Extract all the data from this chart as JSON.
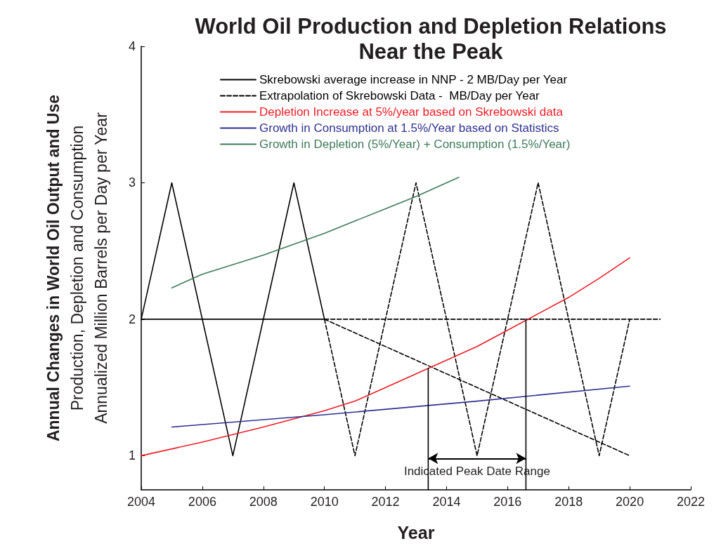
{
  "chart_data": {
    "type": "line",
    "title": "World Oil Production and Depletion Relations\nNear the Peak",
    "xlabel": "Year",
    "ylabel": "Annual Changes in World Oil Output and Use\nProduction, Depletion and Consumption\nAnnualized Million Barrels per Day per Year",
    "xlim": [
      2004,
      2022
    ],
    "xticks": [
      2004,
      2006,
      2008,
      2010,
      2012,
      2014,
      2016,
      2018,
      2020,
      2022
    ],
    "ylim": [
      0.75,
      4
    ],
    "yticks": [
      1,
      2,
      3,
      4
    ],
    "grid": false,
    "legend": "top",
    "marker": "none",
    "line_style": "solid",
    "series": [
      {
        "name": "Skrebowski average increase in NNP - 2 MB/Day per Year",
        "color": "#000000",
        "x": [
          2004,
          2010
        ],
        "values": [
          2,
          2
        ]
      },
      {
        "color": "#000000",
        "x": [
          2004,
          2005,
          2007,
          2009,
          2010
        ],
        "values": [
          2,
          3,
          1,
          3,
          2
        ]
      },
      {
        "color": "#000000",
        "line_style": "dashed",
        "x": [
          2010,
          2011,
          2013,
          2015,
          2017,
          2019,
          2020
        ],
        "values": [
          2,
          1,
          3,
          1,
          3,
          1,
          2
        ]
      },
      {
        "name": "Extrapolation of Skrebowski Data -  MB/Day per Year",
        "color": "#000000",
        "line_style": "dashed",
        "x": [
          2010,
          2021
        ],
        "values": [
          2,
          2
        ]
      },
      {
        "color": "#000000",
        "line_style": "dashed",
        "x": [
          2010,
          2020
        ],
        "values": [
          2,
          1
        ]
      },
      {
        "name": "Depletion Increase at 5%/year based on Skrebowski data",
        "color": "#ee1c25",
        "x": [
          2004,
          2006,
          2008,
          2010,
          2011,
          2012,
          2013,
          2014,
          2015,
          2016,
          2017,
          2018,
          2019,
          2020
        ],
        "values": [
          1.0,
          1.1,
          1.21,
          1.33,
          1.4,
          1.5,
          1.6,
          1.7,
          1.8,
          1.92,
          2.04,
          2.16,
          2.3,
          2.45
        ]
      },
      {
        "name": "Growth in Consumption at 1.5%/Year based on Statistics",
        "color": "#2e3192",
        "x": [
          2005,
          2010,
          2015,
          2020
        ],
        "values": [
          1.21,
          1.3,
          1.4,
          1.51
        ]
      },
      {
        "name": "Growth in Depletion (5%/Year) + Consumption (1.5%/Year)",
        "color": "#3e7b5a",
        "x": [
          2005,
          2006,
          2008,
          2010,
          2012,
          2013,
          2014,
          2014.4
        ],
        "values": [
          2.23,
          2.33,
          2.47,
          2.63,
          2.81,
          2.9,
          3.0,
          3.04
        ]
      },
      {
        "color": "#000000",
        "x": [
          2013.4,
          2013.4
        ],
        "values": [
          0.75,
          1.64
        ]
      },
      {
        "color": "#000000",
        "x": [
          2016.6,
          2016.6
        ],
        "values": [
          0.75,
          2.0
        ]
      }
    ],
    "annotations": [
      "Indicated Peak Date Range"
    ]
  }
}
